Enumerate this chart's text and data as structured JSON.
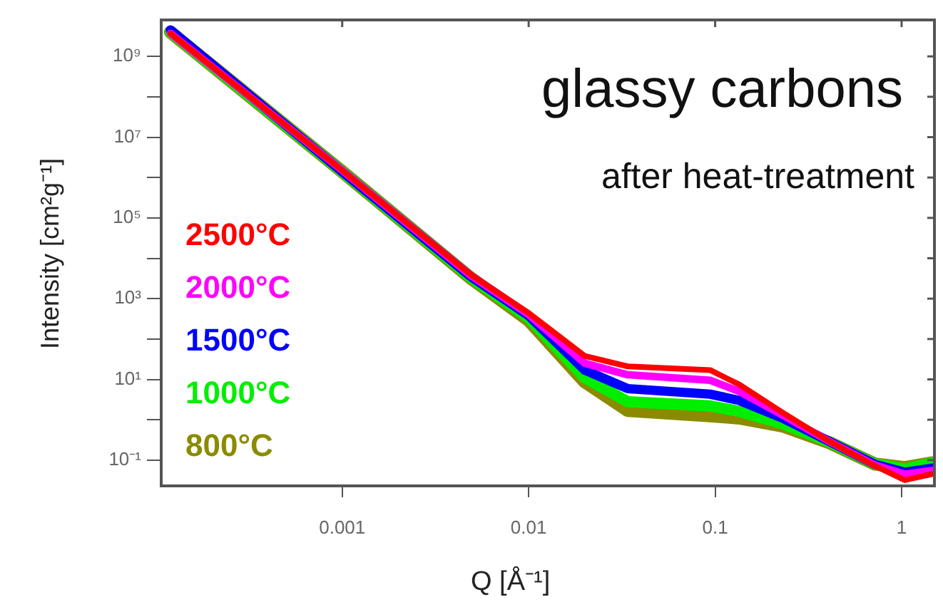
{
  "chart_data": {
    "type": "line",
    "title": "glassy carbons",
    "subtitle": "after heat-treatment",
    "xlabel": "Q [Å⁻¹]",
    "ylabel": "Intensity [cm²g⁻¹]",
    "log": "xy",
    "grid": false,
    "legend": "bottom left",
    "marker": "none",
    "line_style": "solid",
    "xlim": [
      0.000107,
      1.5
    ],
    "ylim": [
      0.023,
      8000000000
    ],
    "xticks": [
      {
        "value": 0.001,
        "label": "0.001"
      },
      {
        "value": 0.01,
        "label": "0.01"
      },
      {
        "value": 0.1,
        "label": "0.1"
      },
      {
        "value": 1,
        "label": "1"
      }
    ],
    "yticks": [
      {
        "value": 0.1,
        "label": "10⁻¹"
      },
      {
        "value": 1,
        "label": null
      },
      {
        "value": 10,
        "label": "10¹"
      },
      {
        "value": 100,
        "label": null
      },
      {
        "value": 1000,
        "label": "10³"
      },
      {
        "value": 10000,
        "label": null
      },
      {
        "value": 100000,
        "label": "10⁵"
      },
      {
        "value": 1000000,
        "label": null
      },
      {
        "value": 10000000,
        "label": "10⁷"
      },
      {
        "value": 100000000,
        "label": null
      },
      {
        "value": 1000000000,
        "label": "10⁹"
      }
    ],
    "x": [
      0.00012,
      0.001,
      0.0049,
      0.01,
      0.02,
      0.034,
      0.094,
      0.135,
      0.23,
      0.41,
      0.72,
      1.04,
      1.45
    ],
    "series": [
      {
        "name": "2500°C",
        "color": "#ff0000",
        "values": [
          3700000000,
          1500000,
          3900,
          440,
          38,
          21,
          17,
          7.4,
          1.5,
          0.29,
          0.072,
          0.032,
          0.045
        ]
      },
      {
        "name": "2000°C",
        "color": "#ff00ff",
        "values": [
          3700000000,
          1500000,
          3700,
          400,
          25,
          13,
          9.5,
          5,
          1.3,
          0.29,
          0.075,
          0.045,
          0.055
        ]
      },
      {
        "name": "1500°C",
        "color": "#0000ff",
        "values": [
          4500000000,
          1400000,
          3500,
          380,
          17,
          5.9,
          4.3,
          3,
          1.1,
          0.29,
          0.078,
          0.05,
          0.063
        ]
      },
      {
        "name": "1000°C",
        "color": "#00ee00",
        "values": [
          4000000000,
          1400000,
          3300,
          330,
          11,
          2.8,
          2.2,
          1.6,
          0.8,
          0.28,
          0.08,
          0.06,
          0.085
        ]
      },
      {
        "name": "800°C",
        "color": "#8b8b00",
        "values": [
          4000000000,
          1400000,
          3200,
          290,
          8.7,
          1.7,
          1.26,
          1.1,
          0.7,
          0.27,
          0.08,
          0.065,
          0.085
        ]
      }
    ]
  }
}
